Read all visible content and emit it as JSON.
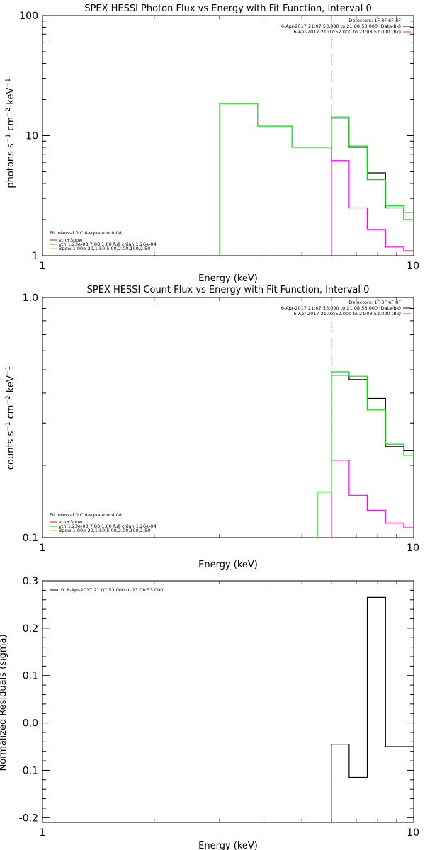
{
  "colors": {
    "observed": "#000000",
    "background": "#ff00ff",
    "total_model": "#00dd00",
    "thermal_model": "#ff0000",
    "powerlaw_model": "#cccc00",
    "threshold_line": "#000000"
  },
  "chart_data": [
    {
      "id": "photon",
      "type": "line",
      "step": true,
      "title": "SPEX HESSI Photon Flux vs Energy with Fit Function, Interval 0",
      "xlabel": "Energy (keV)",
      "ylabel": "photons s⁻¹ cm⁻² keV⁻¹",
      "xscale": "log",
      "yscale": "log",
      "xlim": [
        1,
        10
      ],
      "ylim": [
        1,
        100
      ],
      "x_ticks": [
        {
          "v": 1,
          "label": "1"
        },
        {
          "v": 10,
          "label": "10"
        }
      ],
      "y_ticks": [
        {
          "v": 1,
          "label": "1"
        },
        {
          "v": 10,
          "label": "10"
        },
        {
          "v": 100,
          "label": "100"
        }
      ],
      "vline": 6.0,
      "legend_top": {
        "position": "top-right",
        "header": "Detectors: 1F 3F 6F 8F",
        "items": [
          {
            "text": "6-Apr-2017 21:07:53.000 to 21:08:53.000 (Data-Bk)",
            "color": "#000000"
          },
          {
            "text": "6-Apr-2017 21:07:52.000 to 21:08:52.000 (Bk)",
            "color": "#ff00ff"
          }
        ]
      },
      "legend_bottom": {
        "position": "bottom-left",
        "header": "Fit Interval 0   Chi-square = 0.08",
        "items": [
          {
            "text": "vth+3pow",
            "color": "#ff0000"
          },
          {
            "text": "vth 1.23e-08,7.88,1.00  full chian 1.26e-04",
            "color": "#00dd00"
          },
          {
            "text": "3pow 1.00e-20,1.50,5.00,2.00,100,2.50",
            "color": "#cccc00"
          }
        ]
      },
      "series": [
        {
          "name": "Data-Bk",
          "color": "#000000",
          "edges": [
            6.0,
            6.7,
            7.5,
            8.4,
            9.4,
            10.0
          ],
          "values": [
            14.0,
            8.0,
            4.9,
            2.5,
            2.3
          ]
        },
        {
          "name": "Bk",
          "color": "#ff00ff",
          "edges": [
            6.0,
            6.7,
            7.5,
            8.4,
            9.4,
            10.0
          ],
          "values": [
            6.2,
            2.5,
            1.65,
            1.18,
            1.1
          ]
        },
        {
          "name": "vth+3pow",
          "color": "#00dd00",
          "edges": [
            3.0,
            3.8,
            4.7,
            5.5,
            6.0,
            6.7,
            7.5,
            8.4,
            9.4,
            10.0
          ],
          "values": [
            18.5,
            12.0,
            8.0,
            8.0,
            14.3,
            8.2,
            4.3,
            2.6,
            2.0
          ]
        }
      ]
    },
    {
      "id": "count",
      "type": "line",
      "step": true,
      "title": "SPEX HESSI Count Flux vs Energy with Fit Function, Interval 0",
      "xlabel": "Energy (keV)",
      "ylabel": "counts s⁻¹ cm⁻² keV⁻¹",
      "xscale": "log",
      "yscale": "log",
      "xlim": [
        1,
        10
      ],
      "ylim": [
        0.1,
        1.0
      ],
      "x_ticks": [
        {
          "v": 1,
          "label": "1"
        },
        {
          "v": 10,
          "label": "10"
        }
      ],
      "y_ticks": [
        {
          "v": 0.1,
          "label": "0.1"
        },
        {
          "v": 1.0,
          "label": "1.0"
        }
      ],
      "vline": 6.0,
      "legend_top": {
        "position": "top-right",
        "header": "Detectors: 1F 3F 6F 8F",
        "items": [
          {
            "text": "6-Apr-2017 21:07:53.000 to 21:08:53.000 (Data-Bk)",
            "color": "#000000"
          },
          {
            "text": "6-Apr-2017 21:07:52.000 to 21:08:52.000 (Bk)",
            "color": "#ff00ff"
          }
        ]
      },
      "legend_bottom": {
        "position": "bottom-left",
        "header": "Fit Interval 0   Chi-square = 0.08",
        "items": [
          {
            "text": "vth+3pow",
            "color": "#ff0000"
          },
          {
            "text": "vth 1.23e-08,7.88,1.00  full chian 1.26e-04",
            "color": "#00dd00"
          },
          {
            "text": "3pow 1.00e-20,1.50,5.00,2.00,100,2.50",
            "color": "#cccc00"
          }
        ]
      },
      "series": [
        {
          "name": "Data-Bk",
          "color": "#000000",
          "edges": [
            6.0,
            6.7,
            7.5,
            8.4,
            9.4,
            10.0
          ],
          "values": [
            0.475,
            0.455,
            0.38,
            0.24,
            0.23
          ]
        },
        {
          "name": "Bk",
          "color": "#ff00ff",
          "edges": [
            6.0,
            6.7,
            7.5,
            8.4,
            9.4,
            10.0
          ],
          "values": [
            0.21,
            0.15,
            0.13,
            0.115,
            0.11
          ]
        },
        {
          "name": "vth+3pow",
          "color": "#00dd00",
          "edges": [
            5.5,
            6.0,
            6.7,
            7.5,
            8.4,
            9.4,
            10.0
          ],
          "values": [
            0.155,
            0.49,
            0.47,
            0.34,
            0.245,
            0.22
          ]
        }
      ]
    },
    {
      "id": "residuals",
      "type": "line",
      "step": true,
      "title": "",
      "xlabel": "Energy (keV)",
      "ylabel": "Normalized Residuals (sigma)",
      "xscale": "log",
      "yscale": "linear",
      "xlim": [
        1,
        10
      ],
      "ylim": [
        -0.21,
        0.3
      ],
      "x_ticks": [
        {
          "v": 1,
          "label": "1"
        },
        {
          "v": 10,
          "label": "10"
        }
      ],
      "y_ticks": [
        {
          "v": -0.2,
          "label": "-0.2"
        },
        {
          "v": -0.1,
          "label": "-0.1"
        },
        {
          "v": 0.0,
          "label": "0.0"
        },
        {
          "v": 0.1,
          "label": "0.1"
        },
        {
          "v": 0.2,
          "label": "0.2"
        },
        {
          "v": 0.3,
          "label": "0.3"
        }
      ],
      "legend_top": {
        "position": "top-left",
        "header": "",
        "items": [
          {
            "text": "0. 6-Apr-2017 21:07:53.000 to 21:08:53.000",
            "color": "#000000"
          }
        ]
      },
      "series": [
        {
          "name": "residuals",
          "color": "#000000",
          "edges": [
            6.0,
            6.7,
            7.5,
            8.4,
            9.4,
            10.0
          ],
          "values": [
            -0.045,
            -0.115,
            0.265,
            -0.05,
            -0.05
          ],
          "drop_to_bottom": true
        }
      ]
    }
  ]
}
